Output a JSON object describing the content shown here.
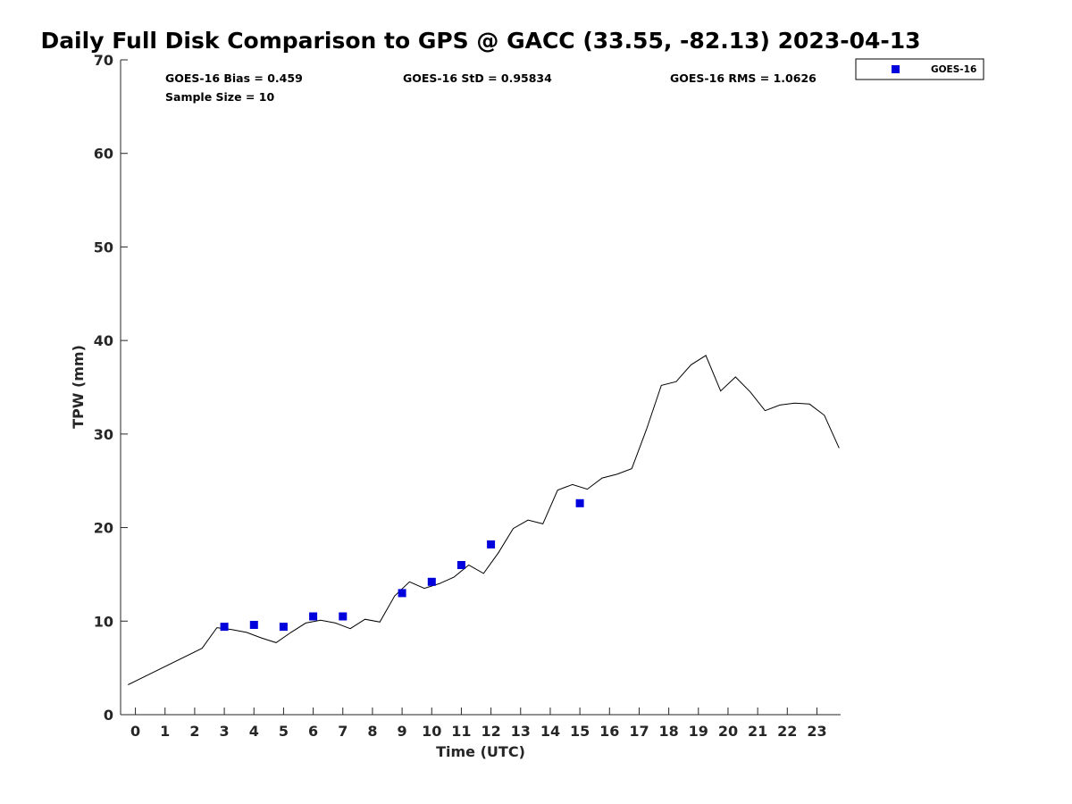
{
  "chart_data": {
    "type": "scatter",
    "title": "Daily Full Disk Comparison to GPS @ GACC (33.55, -82.13) 2023-04-13",
    "xlabel": "Time (UTC)",
    "ylabel": "TPW (mm)",
    "xlim": [
      -0.5,
      23.8
    ],
    "ylim": [
      0,
      70
    ],
    "x_ticks": [
      0,
      1,
      2,
      3,
      4,
      5,
      6,
      7,
      8,
      9,
      10,
      11,
      12,
      13,
      14,
      15,
      16,
      17,
      18,
      19,
      20,
      21,
      22,
      23
    ],
    "y_ticks": [
      0,
      10,
      20,
      30,
      40,
      50,
      60,
      70
    ],
    "grid": false,
    "legend_position": "top-right, outside plot area",
    "stats": {
      "bias": "GOES-16 Bias = 0.459",
      "std": "GOES-16 StD = 0.95834",
      "rms": "GOES-16 RMS = 1.0626",
      "sample_size": "Sample Size = 10"
    },
    "reference_line": {
      "color": "#000000",
      "x": [
        -0.25,
        2.25,
        2.75,
        3.25,
        3.75,
        4.25,
        4.75,
        5.25,
        5.75,
        6.25,
        6.75,
        7.25,
        7.75,
        8.25,
        8.75,
        9.25,
        9.75,
        10.25,
        10.75,
        11.25,
        11.75,
        12.25,
        12.75,
        13.25,
        13.75,
        14.25,
        14.75,
        15.25,
        15.75,
        16.25,
        16.75,
        17.25,
        17.75,
        18.25,
        18.75,
        19.25,
        19.75,
        20.25,
        20.75,
        21.25,
        21.75,
        22.25,
        22.75,
        23.25,
        23.75
      ],
      "y": [
        3.2,
        7.1,
        9.3,
        9.1,
        8.8,
        8.2,
        7.7,
        8.8,
        9.8,
        10.1,
        9.8,
        9.2,
        10.2,
        9.9,
        12.7,
        14.2,
        13.5,
        14.0,
        14.7,
        16.0,
        15.1,
        17.3,
        19.9,
        20.8,
        20.4,
        24.0,
        24.6,
        24.1,
        25.3,
        25.7,
        26.3,
        30.5,
        35.2,
        35.6,
        37.4,
        38.4,
        34.6,
        36.1,
        34.5,
        32.5,
        33.1,
        33.3,
        33.2,
        32.0,
        28.5
      ]
    },
    "series": [
      {
        "name": "GOES-16",
        "color": "#0000dd",
        "marker": "square",
        "x": [
          3,
          4,
          5,
          6,
          7,
          9,
          10,
          11,
          12,
          15
        ],
        "y": [
          9.4,
          9.6,
          9.4,
          10.5,
          10.5,
          13.0,
          14.2,
          16.0,
          18.2,
          22.6
        ]
      }
    ]
  }
}
